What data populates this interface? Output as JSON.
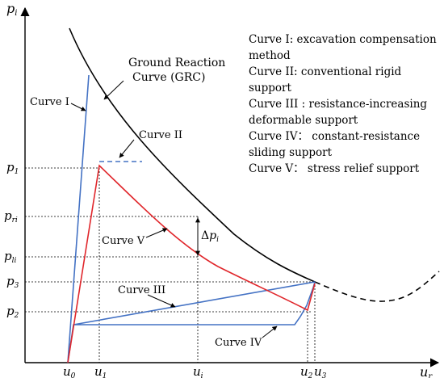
{
  "axes": {
    "y_label": {
      "main": "p",
      "sub": "i"
    },
    "x_label": {
      "main": "u",
      "sub": "r"
    }
  },
  "y_ticks": [
    {
      "main": "p",
      "sub": "1"
    },
    {
      "main": "p",
      "sub": "ri"
    },
    {
      "main": "p",
      "sub": "li"
    },
    {
      "main": "p",
      "sub": "3"
    },
    {
      "main": "p",
      "sub": "2"
    }
  ],
  "x_ticks": [
    {
      "main": "u",
      "sub": "0"
    },
    {
      "main": "u",
      "sub": "1"
    },
    {
      "main": "u",
      "sub": "i"
    },
    {
      "main": "u",
      "sub": "2"
    },
    {
      "main": "u",
      "sub": "3"
    }
  ],
  "curve_labels": {
    "grc_line1": "Ground Reaction",
    "grc_line2": "Curve (GRC)",
    "curve1": "Curve I",
    "curve2": "Curve II",
    "curve3": "Curve III",
    "curve4": "Curve IV",
    "curve5": "Curve V"
  },
  "delta": {
    "prefix": "Δ",
    "main": "p",
    "sub": "i"
  },
  "legend": [
    "Curve I: excavation compensation",
    "method",
    "Curve II: conventional rigid",
    "support",
    "Curve III : resistance-increasing",
    "deformable support",
    "Curve IV：  constant-resistance",
    "sliding support",
    "Curve V：  stress relief support"
  ],
  "colors": {
    "axis": "#000000",
    "grc": "#000000",
    "blue": "#4472c4",
    "red": "#e0262b",
    "dashed_guide": "#000000"
  }
}
